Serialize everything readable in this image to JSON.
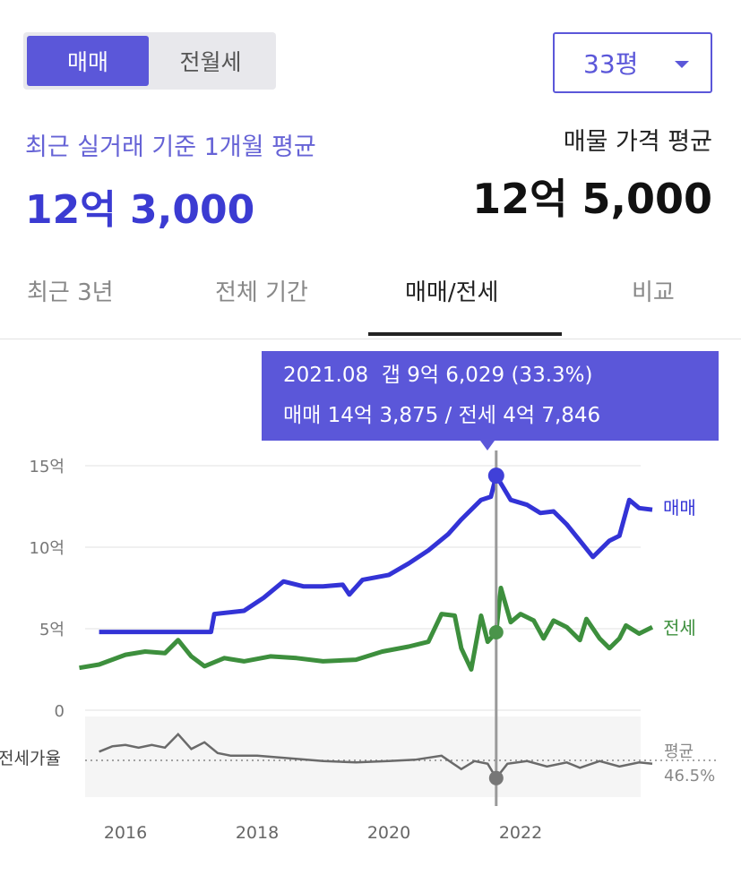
{
  "toggle": {
    "sale": "매매",
    "lease": "전월세",
    "selected": "매매"
  },
  "size_select": {
    "value": "33평"
  },
  "summary": {
    "recent_label": "최근 실거래 기준 1개월 평균",
    "recent_value": "12억 3,000",
    "listing_label": "매물 가격 평균",
    "listing_value": "12억 5,000"
  },
  "tabs": [
    {
      "label": "최근 3년"
    },
    {
      "label": "전체 기간"
    },
    {
      "label": "매매/전세",
      "active": true
    },
    {
      "label": "비교"
    }
  ],
  "colors": {
    "accent": "#5b57d9",
    "sale": "#3333d6",
    "lease": "#3d8f3d",
    "ratio": "#666666"
  },
  "tooltip": {
    "line1": "2021.08  갭 9억 6,029 (33.3%)",
    "line2": "매매 14억 3,875 / 전세 4억 7,846"
  },
  "chart_data": {
    "type": "line",
    "x_ticks": [
      "2016",
      "2018",
      "2020",
      "2022"
    ],
    "y_ticks": [
      "15억",
      "10억",
      "5억",
      "0"
    ],
    "ylim": [
      0,
      15
    ],
    "series": [
      {
        "name": "매매",
        "points": [
          [
            2015.6,
            4.8
          ],
          [
            2017.3,
            4.8
          ],
          [
            2017.35,
            5.9
          ],
          [
            2017.8,
            6.1
          ],
          [
            2018.1,
            6.9
          ],
          [
            2018.4,
            7.9
          ],
          [
            2018.7,
            7.6
          ],
          [
            2019.0,
            7.6
          ],
          [
            2019.3,
            7.7
          ],
          [
            2019.4,
            7.1
          ],
          [
            2019.6,
            8.0
          ],
          [
            2020.0,
            8.3
          ],
          [
            2020.3,
            9.0
          ],
          [
            2020.6,
            9.8
          ],
          [
            2020.9,
            10.8
          ],
          [
            2021.1,
            11.7
          ],
          [
            2021.4,
            12.9
          ],
          [
            2021.55,
            13.1
          ],
          [
            2021.63,
            14.39
          ],
          [
            2021.85,
            12.9
          ],
          [
            2022.1,
            12.6
          ],
          [
            2022.3,
            12.1
          ],
          [
            2022.5,
            12.2
          ],
          [
            2022.7,
            11.4
          ],
          [
            2022.9,
            10.4
          ],
          [
            2023.1,
            9.4
          ],
          [
            2023.35,
            10.4
          ],
          [
            2023.5,
            10.7
          ],
          [
            2023.65,
            12.9
          ],
          [
            2023.8,
            12.4
          ],
          [
            2024.0,
            12.3
          ]
        ]
      },
      {
        "name": "전세",
        "points": [
          [
            2015.3,
            2.6
          ],
          [
            2015.6,
            2.8
          ],
          [
            2016.0,
            3.4
          ],
          [
            2016.3,
            3.6
          ],
          [
            2016.6,
            3.5
          ],
          [
            2016.8,
            4.3
          ],
          [
            2017.0,
            3.3
          ],
          [
            2017.2,
            2.7
          ],
          [
            2017.5,
            3.2
          ],
          [
            2017.8,
            3.0
          ],
          [
            2018.2,
            3.3
          ],
          [
            2018.6,
            3.2
          ],
          [
            2019.0,
            3.0
          ],
          [
            2019.5,
            3.1
          ],
          [
            2019.9,
            3.6
          ],
          [
            2020.3,
            3.9
          ],
          [
            2020.6,
            4.2
          ],
          [
            2020.8,
            5.9
          ],
          [
            2021.0,
            5.8
          ],
          [
            2021.1,
            3.8
          ],
          [
            2021.25,
            2.5
          ],
          [
            2021.4,
            5.8
          ],
          [
            2021.5,
            4.2
          ],
          [
            2021.63,
            4.78
          ],
          [
            2021.7,
            7.5
          ],
          [
            2021.85,
            5.4
          ],
          [
            2022.0,
            5.9
          ],
          [
            2022.2,
            5.5
          ],
          [
            2022.35,
            4.4
          ],
          [
            2022.5,
            5.5
          ],
          [
            2022.7,
            5.1
          ],
          [
            2022.9,
            4.3
          ],
          [
            2023.0,
            5.6
          ],
          [
            2023.2,
            4.4
          ],
          [
            2023.35,
            3.8
          ],
          [
            2023.5,
            4.4
          ],
          [
            2023.6,
            5.2
          ],
          [
            2023.8,
            4.7
          ],
          [
            2024.0,
            5.1
          ]
        ]
      }
    ],
    "ratio_series": {
      "name": "전세가율",
      "avg_label": "평균",
      "avg_value": "46.5%",
      "points": [
        [
          2015.6,
          53
        ],
        [
          2015.8,
          57
        ],
        [
          2016.0,
          58
        ],
        [
          2016.2,
          56
        ],
        [
          2016.4,
          58
        ],
        [
          2016.6,
          56
        ],
        [
          2016.8,
          66
        ],
        [
          2017.0,
          55
        ],
        [
          2017.2,
          60
        ],
        [
          2017.4,
          52
        ],
        [
          2017.6,
          50
        ],
        [
          2018.0,
          50
        ],
        [
          2018.5,
          48
        ],
        [
          2019.0,
          46
        ],
        [
          2019.5,
          45
        ],
        [
          2020.0,
          46
        ],
        [
          2020.4,
          47
        ],
        [
          2020.8,
          50
        ],
        [
          2021.1,
          40
        ],
        [
          2021.3,
          46
        ],
        [
          2021.5,
          44
        ],
        [
          2021.63,
          33.3
        ],
        [
          2021.8,
          44
        ],
        [
          2022.1,
          46
        ],
        [
          2022.4,
          42
        ],
        [
          2022.7,
          45
        ],
        [
          2022.9,
          41
        ],
        [
          2023.2,
          46
        ],
        [
          2023.5,
          42
        ],
        [
          2023.8,
          45
        ],
        [
          2024.0,
          44
        ]
      ]
    },
    "highlight": {
      "x": 2021.63,
      "sale": 14.39,
      "lease": 4.78,
      "ratio": 33.3
    },
    "grid": true
  }
}
